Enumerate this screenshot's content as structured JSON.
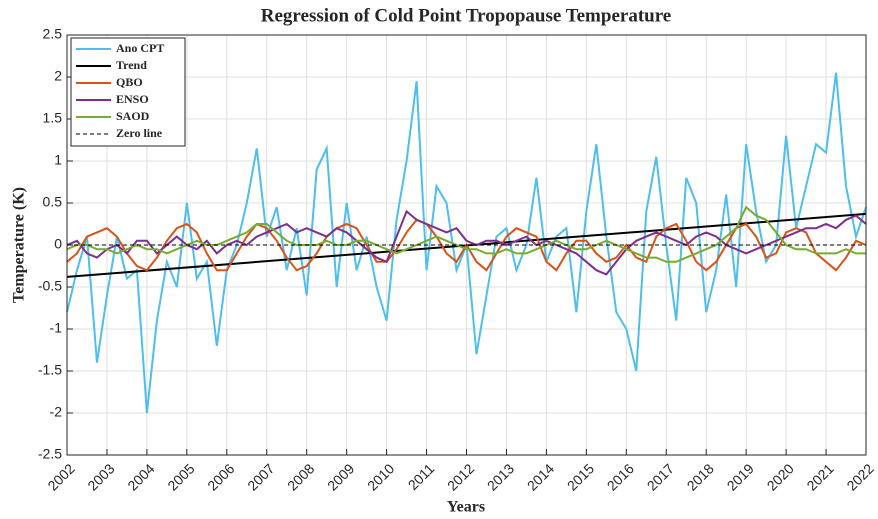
{
  "chart_data": {
    "type": "line",
    "title": "Regression of Cold Point Tropopause Temperature",
    "x_label": "Years",
    "y_label": "Temperature (K)",
    "x": [
      2002,
      2002.25,
      2002.5,
      2002.75,
      2003,
      2003.25,
      2003.5,
      2003.75,
      2004,
      2004.25,
      2004.5,
      2004.75,
      2005,
      2005.25,
      2005.5,
      2005.75,
      2006,
      2006.25,
      2006.5,
      2006.75,
      2007,
      2007.25,
      2007.5,
      2007.75,
      2008,
      2008.25,
      2008.5,
      2008.75,
      2009,
      2009.25,
      2009.5,
      2009.75,
      2010,
      2010.25,
      2010.5,
      2010.75,
      2011,
      2011.25,
      2011.5,
      2011.75,
      2012,
      2012.25,
      2012.5,
      2012.75,
      2013,
      2013.25,
      2013.5,
      2013.75,
      2014,
      2014.25,
      2014.5,
      2014.75,
      2015,
      2015.25,
      2015.5,
      2015.75,
      2016,
      2016.25,
      2016.5,
      2016.75,
      2017,
      2017.25,
      2017.5,
      2017.75,
      2018,
      2018.25,
      2018.5,
      2018.75,
      2019,
      2019.25,
      2019.5,
      2019.75,
      2020,
      2020.25,
      2020.5,
      2020.75,
      2021,
      2021.25,
      2021.5,
      2021.75,
      2022
    ],
    "series": [
      {
        "name": "Ano CPT",
        "color": "#4dbeee",
        "values": [
          -0.8,
          -0.3,
          0.1,
          -1.4,
          -0.6,
          0.1,
          -0.4,
          -0.3,
          -2.0,
          -0.9,
          -0.2,
          -0.5,
          0.5,
          -0.4,
          -0.2,
          -1.2,
          -0.3,
          0.0,
          0.5,
          1.15,
          0.1,
          0.45,
          -0.3,
          0.2,
          -0.6,
          0.9,
          1.15,
          -0.5,
          0.5,
          -0.3,
          0.1,
          -0.5,
          -0.9,
          0.3,
          1.0,
          1.95,
          -0.3,
          0.7,
          0.5,
          -0.3,
          0.0,
          -1.3,
          -0.6,
          0.1,
          0.2,
          -0.3,
          0.0,
          0.8,
          -0.2,
          0.1,
          0.2,
          -0.8,
          0.4,
          1.2,
          0.1,
          -0.8,
          -1.0,
          -1.5,
          0.4,
          1.05,
          0.0,
          -0.9,
          0.8,
          0.5,
          -0.8,
          -0.3,
          0.6,
          -0.5,
          1.2,
          0.4,
          -0.2,
          0.0,
          1.3,
          0.2,
          0.7,
          1.2,
          1.1,
          2.05,
          0.7,
          0.1,
          0.45
        ]
      },
      {
        "name": "Trend",
        "color": "#000000",
        "x": [
          2002,
          2022
        ],
        "values": [
          -0.38,
          0.37
        ]
      },
      {
        "name": "QBO",
        "color": "#d95319",
        "values": [
          -0.2,
          -0.1,
          0.1,
          0.15,
          0.2,
          0.1,
          -0.1,
          -0.25,
          -0.3,
          -0.15,
          0.05,
          0.2,
          0.25,
          0.15,
          -0.1,
          -0.3,
          -0.3,
          -0.1,
          0.1,
          0.25,
          0.2,
          0.05,
          -0.15,
          -0.3,
          -0.25,
          -0.1,
          0.1,
          0.2,
          0.25,
          0.2,
          0.0,
          -0.2,
          -0.2,
          -0.05,
          0.15,
          0.3,
          0.25,
          0.1,
          -0.1,
          -0.2,
          0.0,
          -0.2,
          -0.3,
          -0.1,
          0.1,
          0.2,
          0.15,
          0.1,
          -0.2,
          -0.3,
          -0.1,
          0.05,
          0.05,
          -0.1,
          -0.2,
          -0.15,
          0.0,
          -0.15,
          -0.2,
          0.1,
          0.2,
          0.25,
          0.05,
          -0.2,
          -0.3,
          -0.2,
          0.0,
          0.2,
          0.25,
          0.1,
          -0.15,
          -0.1,
          0.15,
          0.2,
          0.15,
          -0.1,
          -0.2,
          -0.3,
          -0.15,
          0.05,
          0.0
        ]
      },
      {
        "name": "ENSO",
        "color": "#7e2f8e",
        "values": [
          0.0,
          0.05,
          -0.1,
          -0.15,
          -0.05,
          0.0,
          -0.1,
          0.05,
          0.05,
          -0.1,
          0.0,
          0.1,
          0.0,
          -0.05,
          0.05,
          -0.1,
          0.0,
          0.05,
          0.0,
          0.1,
          0.15,
          0.2,
          0.25,
          0.15,
          0.2,
          0.15,
          0.1,
          0.2,
          0.15,
          0.05,
          -0.05,
          -0.15,
          -0.2,
          0.1,
          0.4,
          0.3,
          0.25,
          0.2,
          0.15,
          0.2,
          0.05,
          0.0,
          0.05,
          0.05,
          0.0,
          0.05,
          0.1,
          0.0,
          0.05,
          0.0,
          -0.05,
          -0.1,
          -0.2,
          -0.3,
          -0.35,
          -0.2,
          -0.05,
          0.05,
          0.1,
          0.15,
          0.1,
          0.05,
          0.0,
          0.1,
          0.15,
          0.1,
          0.0,
          -0.05,
          -0.1,
          -0.05,
          0.0,
          0.05,
          0.1,
          0.15,
          0.2,
          0.2,
          0.25,
          0.2,
          0.3,
          0.35,
          0.25
        ]
      },
      {
        "name": "SAOD",
        "color": "#77ac30",
        "values": [
          -0.05,
          0.0,
          0.0,
          -0.05,
          -0.05,
          -0.1,
          -0.05,
          0.0,
          -0.05,
          -0.05,
          -0.1,
          -0.05,
          0.0,
          0.05,
          0.0,
          0.0,
          0.05,
          0.1,
          0.15,
          0.25,
          0.25,
          0.15,
          0.05,
          0.0,
          0.0,
          0.0,
          0.05,
          0.0,
          0.0,
          0.05,
          0.05,
          0.0,
          -0.05,
          -0.1,
          -0.05,
          0.0,
          0.05,
          0.1,
          0.05,
          0.0,
          -0.05,
          -0.05,
          -0.1,
          -0.1,
          -0.05,
          -0.1,
          -0.1,
          -0.05,
          0.0,
          0.05,
          0.0,
          -0.05,
          -0.05,
          0.0,
          0.05,
          0.0,
          -0.05,
          -0.1,
          -0.15,
          -0.15,
          -0.2,
          -0.2,
          -0.15,
          -0.1,
          -0.05,
          0.0,
          0.1,
          0.2,
          0.45,
          0.35,
          0.3,
          0.15,
          0.0,
          -0.05,
          -0.05,
          -0.1,
          -0.1,
          -0.1,
          -0.05,
          -0.1,
          -0.1
        ]
      },
      {
        "name": "Zero line",
        "color": "#000000",
        "linestyle": "dashed",
        "x": [
          2002,
          2022
        ],
        "values": [
          0,
          0
        ]
      }
    ],
    "xlim": [
      2002,
      2022
    ],
    "xticks": [
      2002,
      2003,
      2004,
      2005,
      2006,
      2007,
      2008,
      2009,
      2010,
      2011,
      2012,
      2013,
      2014,
      2015,
      2016,
      2017,
      2018,
      2019,
      2020,
      2021,
      2022
    ],
    "ylim": [
      -2.5,
      2.5
    ],
    "yticks": [
      -2.5,
      -2,
      -1.5,
      -1,
      -0.5,
      0,
      0.5,
      1,
      1.5,
      2,
      2.5
    ],
    "grid": true,
    "legend": "upper left"
  }
}
